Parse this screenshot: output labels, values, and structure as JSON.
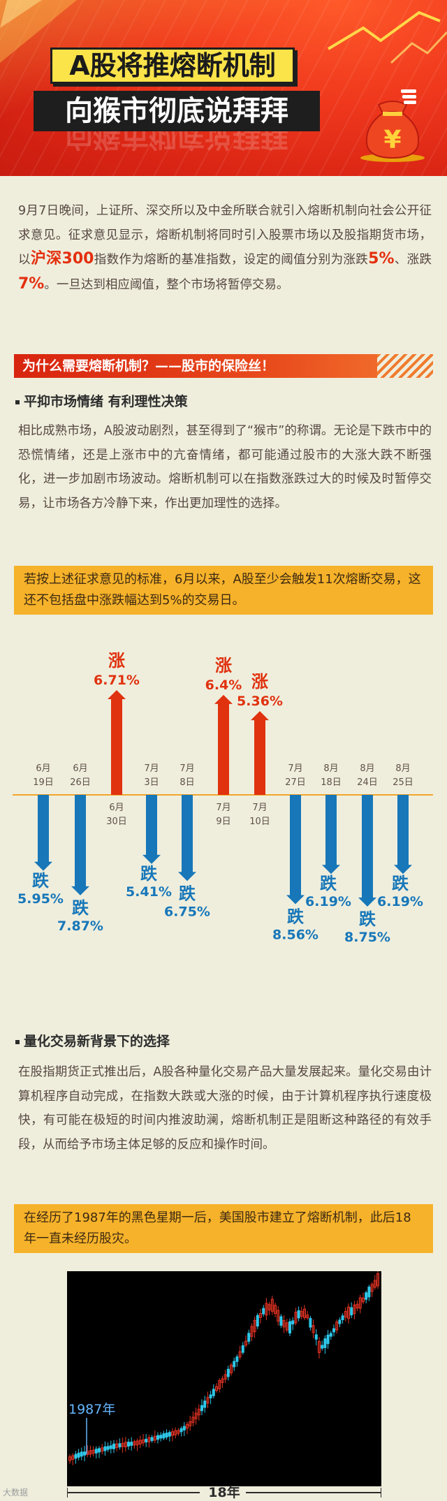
{
  "header": {
    "title_line1": "A股将推熔断机制",
    "title_line2": "向猴市彻底说拜拜",
    "bag_symbol": "¥"
  },
  "intro": {
    "part1": "9月7日晚间，上证所、深交所以及中金所联合就引入熔断机制向社会公开征求意见。征求意见显示，熔断机制将同时引入股票市场以及股指期货市场，以",
    "index_name": "沪深300",
    "part2": "指数作为熔断的基准指数，设定的阈值分别为涨跌",
    "threshold1": "5%",
    "part3": "、涨跌",
    "threshold2": "7%",
    "part4": "。一旦达到相应阈值，整个市场将暂停交易。"
  },
  "section1": {
    "banner": "为什么需要熔断机制？——股市的保险丝！"
  },
  "sub1": {
    "heading": "平抑市场情绪 有利理性决策",
    "body": "相比成熟市场，A股波动剧烈，甚至得到了“猴市”的称谓。无论是下跌市中的恐慌情绪，还是上涨市中的亢奋情绪，都可能通过股市的大涨大跌不断强化，进一步加剧市场波动。熔断机制可以在指数涨跌过大的时候及时暂停交易，让市场各方冷静下来，作出更加理性的选择。",
    "note": "若按上述征求意见的标准，6月以来，A股至少会触发11次熔断交易，这还不包括盘中涨跌幅达到5%的交易日。"
  },
  "chart_data": [
    {
      "type": "bar",
      "categories": [
        "6月19日",
        "6月26日",
        "6月30日",
        "7月3日",
        "7月8日",
        "7月9日",
        "7月10日",
        "7月27日",
        "8月18日",
        "8月24日",
        "8月25日"
      ],
      "values": [
        -5.95,
        -7.87,
        6.71,
        -5.41,
        -6.75,
        6.4,
        5.36,
        -8.56,
        -6.19,
        -8.75,
        -6.19
      ],
      "labels": [
        {
          "word": "跌",
          "pct": "5.95%"
        },
        {
          "word": "跌",
          "pct": "7.87%"
        },
        {
          "word": "涨",
          "pct": "6.71%"
        },
        {
          "word": "跌",
          "pct": "5.41%"
        },
        {
          "word": "跌",
          "pct": "6.75%"
        },
        {
          "word": "涨",
          "pct": "6.4%"
        },
        {
          "word": "涨",
          "pct": "5.36%"
        },
        {
          "word": "跌",
          "pct": "8.56%"
        },
        {
          "word": "跌",
          "pct": "6.19%"
        },
        {
          "word": "跌",
          "pct": "8.75%"
        },
        {
          "word": "跌",
          "pct": "6.19%"
        }
      ],
      "dates": [
        {
          "m": "6月",
          "d": "19日"
        },
        {
          "m": "6月",
          "d": "26日"
        },
        {
          "m": "6月",
          "d": "30日"
        },
        {
          "m": "7月",
          "d": "3日"
        },
        {
          "m": "7月",
          "d": "8日"
        },
        {
          "m": "7月",
          "d": "9日"
        },
        {
          "m": "7月",
          "d": "10日"
        },
        {
          "m": "7月",
          "d": "27日"
        },
        {
          "m": "8月",
          "d": "18日"
        },
        {
          "m": "8月",
          "d": "24日"
        },
        {
          "m": "8月",
          "d": "25日"
        }
      ],
      "colors": {
        "up": "#e0320f",
        "down": "#1777b9",
        "axis": "#f2a72a"
      }
    },
    {
      "type": "line",
      "title": "",
      "annotation": "1987年",
      "span_label": "18年",
      "grid": false,
      "background": "#000000",
      "colors": {
        "up": "#e63323",
        "down": "#2fc7e9",
        "annotation": "#66b7ff"
      }
    }
  ],
  "sub2": {
    "heading": "量化交易新背景下的选择",
    "body": "在股指期货正式推出后，A股各种量化交易产品大量发展起来。量化交易由计算机程序自动完成，在指数大跌或大涨的时候，由于计算机程序执行速度极快，有可能在极短的时间内推波助澜，熔断机制正是阻断这种路径的有效手段，从而给予市场主体足够的反应和操作时间。",
    "note": "在经历了1987年的黑色星期一后，美国股市建立了熔断机制，此后18年一直未经历股灾。"
  },
  "watermark": "大数据"
}
